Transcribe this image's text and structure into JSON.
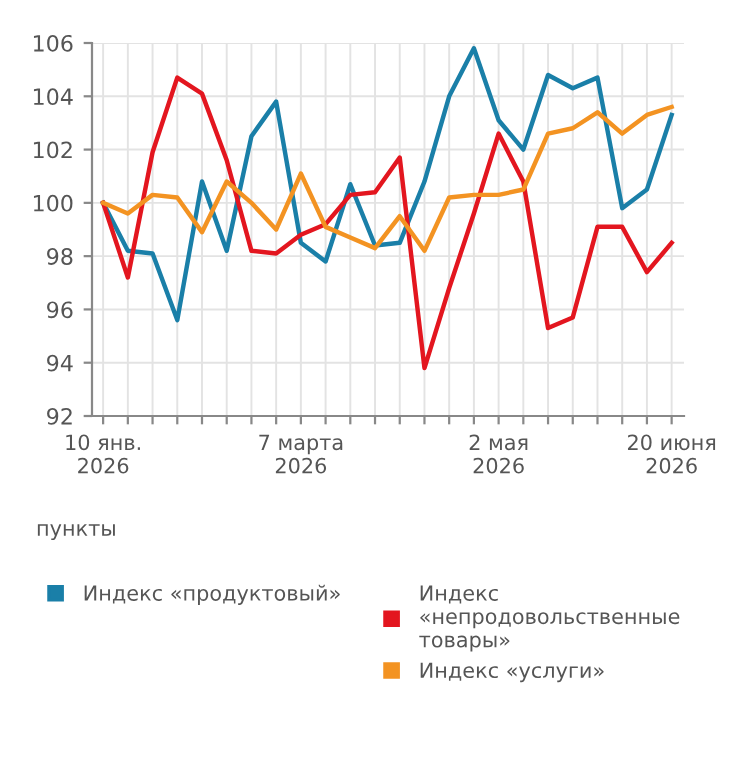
{
  "chart_data": {
    "type": "line",
    "ylabel": "пункты",
    "categories": [
      "10 янв.\n2026",
      null,
      null,
      null,
      null,
      null,
      null,
      null,
      "7 марта\n2026",
      null,
      null,
      null,
      null,
      null,
      null,
      null,
      "2 мая\n2026",
      null,
      null,
      null,
      null,
      null,
      null,
      "20 июня\n2026"
    ],
    "series": [
      {
        "name": "Индекс «продуктовый»",
        "color": "#1a7fa8",
        "values": [
          100.0,
          98.2,
          98.1,
          95.6,
          100.8,
          98.2,
          102.5,
          103.8,
          98.5,
          97.8,
          100.7,
          98.4,
          98.5,
          100.8,
          104.0,
          105.8,
          103.1,
          102.0,
          104.8,
          104.3,
          104.7,
          99.8,
          100.5,
          103.3
        ]
      },
      {
        "name": "Индекс «непродовольственные товары»",
        "color": "#e3161f",
        "values": [
          100.0,
          97.2,
          101.9,
          104.7,
          104.1,
          101.6,
          98.2,
          98.1,
          98.8,
          99.2,
          100.3,
          100.4,
          101.7,
          93.8,
          96.8,
          99.6,
          102.6,
          100.8,
          95.3,
          95.7,
          99.1,
          99.1,
          97.4,
          98.5
        ]
      },
      {
        "name": "Индекс «услуги»",
        "color": "#f39322",
        "values": [
          100.0,
          99.6,
          100.3,
          100.2,
          98.9,
          100.8,
          100.0,
          99.0,
          101.1,
          99.1,
          98.7,
          98.3,
          99.5,
          98.2,
          100.2,
          100.3,
          100.3,
          100.5,
          102.6,
          102.8,
          103.4,
          102.6,
          103.3,
          103.6
        ]
      }
    ],
    "ylim": [
      92,
      106
    ],
    "yticks": [
      92,
      94,
      96,
      98,
      100,
      102,
      104,
      106
    ],
    "grid": true,
    "legend": "bottom",
    "marker": "none",
    "line_style": "solid"
  }
}
